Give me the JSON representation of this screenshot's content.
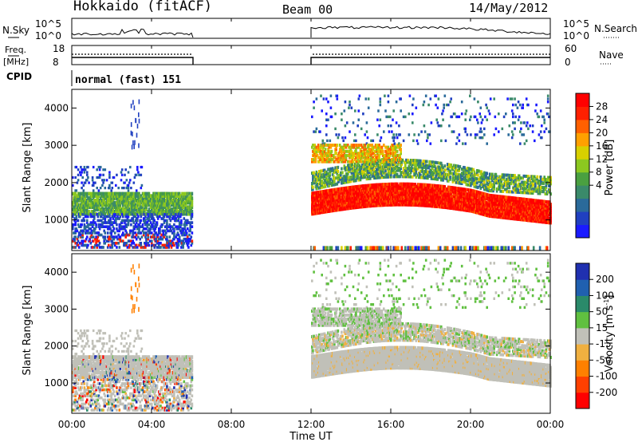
{
  "header": {
    "station": "Hokkaido (fitACF)",
    "beam": "Beam 00",
    "date": "14/May/2012"
  },
  "info_panels": {
    "nsky_label": "N.Sky",
    "nsearch_label": "N.Search",
    "freq_label_1": "Freq.",
    "freq_label_2": "[MHz]",
    "nave_label": "Nave",
    "cpid_label": "CPID",
    "cpid_value": "normal (fast) 151",
    "nsky_ticks": [
      "10^5",
      "10^0"
    ],
    "nsearch_ticks": [
      "10^5",
      "10^0"
    ],
    "freq_ticks": [
      "18",
      "8"
    ],
    "nave_ticks": [
      "60",
      "0"
    ]
  },
  "colorbars": {
    "power": {
      "label": "Power [dB]",
      "ticks": [
        "28",
        "24",
        "20",
        "16",
        "12",
        "8",
        "4"
      ],
      "colors": [
        "#1a1aff",
        "#2040c0",
        "#2a6a9a",
        "#3a8a6a",
        "#4aa040",
        "#8cc820",
        "#d8d000",
        "#ffa000",
        "#ff6000",
        "#ff2000",
        "#ff0000"
      ]
    },
    "velocity": {
      "label": "Velocity [m s",
      "label_sup": "-1",
      "label_end": "]",
      "ticks": [
        "200",
        "100",
        "50",
        "15",
        "-15",
        "-50",
        "-100",
        "-200"
      ],
      "colors": [
        "#2030b0",
        "#2060b0",
        "#2a8a6a",
        "#60c040",
        "#c0c0b8",
        "#f0b040",
        "#ff8000",
        "#ff4000",
        "#ff0000"
      ]
    }
  },
  "chart_data": [
    {
      "type": "heatmap",
      "title": "Power",
      "ylabel": "Slant Range [km]",
      "ylim": [
        180,
        4500
      ],
      "yticks": [
        "4000",
        "3000",
        "2000",
        "1000"
      ],
      "xlim_hours": [
        0,
        24
      ],
      "data_gaps_hours": [
        [
          6,
          12
        ]
      ],
      "bands": [
        {
          "t_start": 0,
          "t_end": 6,
          "range_km": [
            1200,
            1750
          ],
          "level_db": 14
        },
        {
          "t_start": 0,
          "t_end": 6,
          "range_km": [
            300,
            900
          ],
          "level_db": 6
        },
        {
          "t_start": 12,
          "t_end": 24,
          "range_km": [
            1100,
            1800
          ],
          "level_db": 28
        },
        {
          "t_start": 12,
          "t_end": 24,
          "range_km": [
            1900,
            2400
          ],
          "level_db": 14
        },
        {
          "t_start": 12,
          "t_end": 16,
          "range_km": [
            2600,
            3000
          ],
          "level_db": 16
        }
      ]
    },
    {
      "type": "heatmap",
      "title": "Velocity",
      "ylabel": "Slant Range [km]",
      "ylim": [
        180,
        4500
      ],
      "yticks": [
        "4000",
        "3000",
        "2000",
        "1000"
      ],
      "xlim_hours": [
        0,
        24
      ],
      "xticks": [
        "00:00",
        "04:00",
        "08:00",
        "12:00",
        "16:00",
        "20:00",
        "00:00"
      ],
      "xlabel": "Time UT",
      "data_gaps_hours": [
        [
          6,
          12
        ]
      ],
      "dominant_velocity": "-15 to 15"
    }
  ]
}
